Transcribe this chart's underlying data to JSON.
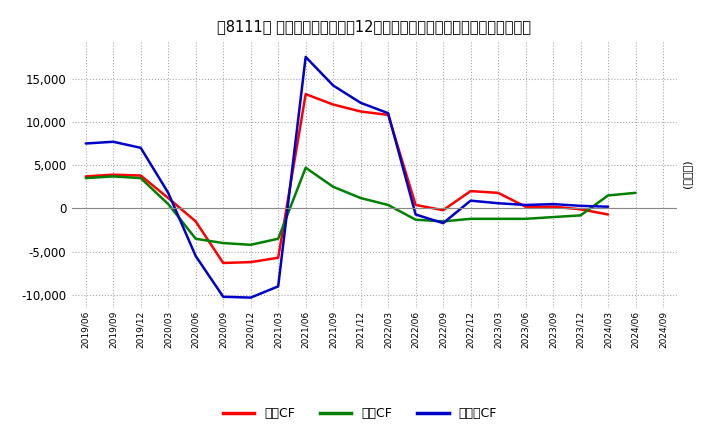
{
  "title": "、8111。 キャッシュフローの12か月移動合計の対前年同期増減額の推移",
  "title_text": "【8111】 キャッシュフローの12か月移動合計の対前年同期増減額の推移",
  "ylabel": "(百万円)",
  "ylim": [
    -11500,
    19500
  ],
  "yticks": [
    -10000,
    -5000,
    0,
    5000,
    10000,
    15000
  ],
  "legend_labels": [
    "営業CF",
    "投資CF",
    "フリーCF"
  ],
  "legend_colors": [
    "#ff0000",
    "#008000",
    "#0000cc"
  ],
  "x_labels": [
    "2019/06",
    "2019/09",
    "2019/12",
    "2020/03",
    "2020/06",
    "2020/09",
    "2020/12",
    "2021/03",
    "2021/06",
    "2021/09",
    "2021/12",
    "2022/03",
    "2022/06",
    "2022/09",
    "2022/12",
    "2023/03",
    "2023/06",
    "2023/09",
    "2023/12",
    "2024/03",
    "2024/06",
    "2024/09"
  ],
  "operating_cf": [
    3700,
    3900,
    3800,
    1200,
    -1500,
    -6300,
    -6200,
    -5700,
    13200,
    12000,
    11200,
    10800,
    400,
    -200,
    2000,
    1800,
    200,
    200,
    -100,
    -700,
    null,
    null
  ],
  "investing_cf": [
    3500,
    3700,
    3500,
    500,
    -3500,
    -4000,
    -4200,
    -3500,
    4700,
    2500,
    1200,
    400,
    -1300,
    -1500,
    -1200,
    -1200,
    -1200,
    -1000,
    -800,
    1500,
    1800,
    null
  ],
  "free_cf": [
    7500,
    7700,
    7000,
    1800,
    -5500,
    -10200,
    -10300,
    -9000,
    17500,
    14200,
    12200,
    11000,
    -700,
    -1700,
    900,
    600,
    400,
    500,
    300,
    200,
    null,
    null
  ],
  "background_color": "#ffffff",
  "grid_color": "#aaaaaa",
  "line_width": 1.8
}
